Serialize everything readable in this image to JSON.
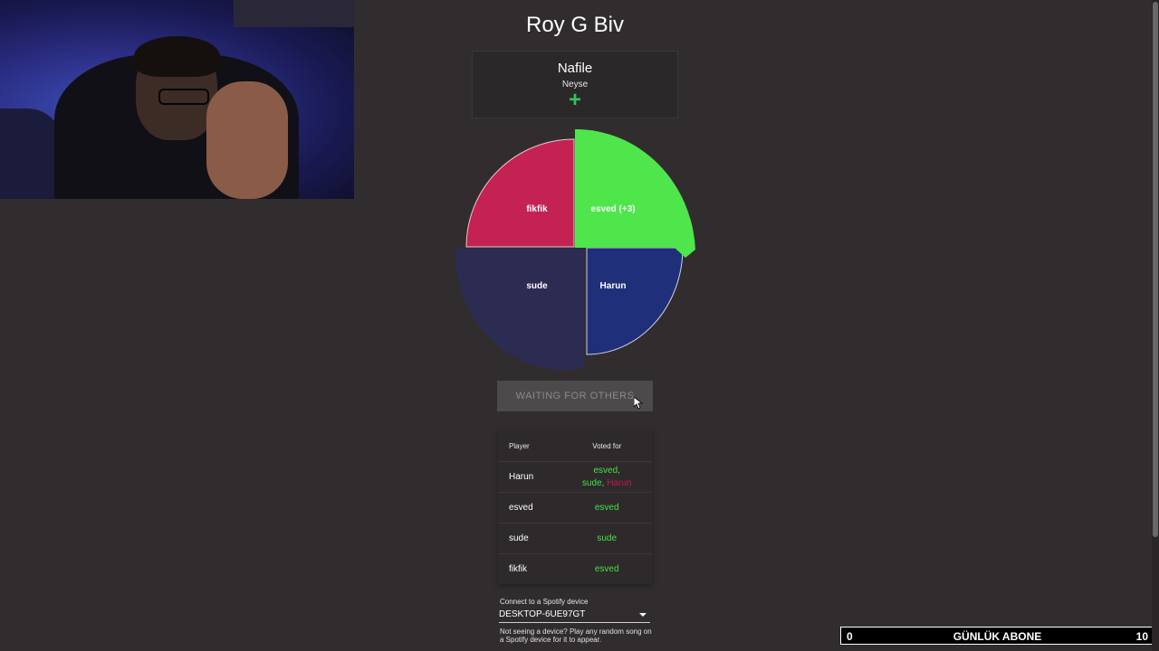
{
  "page": {
    "title": "Roy G Biv"
  },
  "song": {
    "title": "Nafile",
    "artist": "Neyse",
    "add_icon": "plus-icon"
  },
  "wheel": {
    "segments": [
      {
        "label": "fikfik",
        "color": "#c42252"
      },
      {
        "label": "esved (+3)",
        "color": "#4ee64a"
      },
      {
        "label": "sude",
        "color": "#2c2b52"
      },
      {
        "label": "Harun",
        "color": "#1f2f7a"
      }
    ]
  },
  "status_button": {
    "label": "WAITING FOR OTHERS"
  },
  "votes_table": {
    "headers": {
      "player": "Player",
      "voted_for": "Voted for"
    },
    "rows": [
      {
        "player": "Harun",
        "votes": [
          "esved,",
          "sude,",
          "Harun"
        ]
      },
      {
        "player": "esved",
        "votes": [
          "esved"
        ]
      },
      {
        "player": "sude",
        "votes": [
          "sude"
        ]
      },
      {
        "player": "fikfik",
        "votes": [
          "esved"
        ]
      }
    ]
  },
  "device": {
    "label": "Connect to a Spotify device",
    "selected": "DESKTOP-6UE97GT",
    "help": "Not seeing a device? Play any random song on a Spotify device for it to appear."
  },
  "subscriber_bar": {
    "current": "0",
    "label": "GÜNLÜK ABONE",
    "goal": "10"
  },
  "colors": {
    "accent_green": "#45e04a",
    "vote_red": "#c2194a",
    "background": "#312d2e"
  }
}
